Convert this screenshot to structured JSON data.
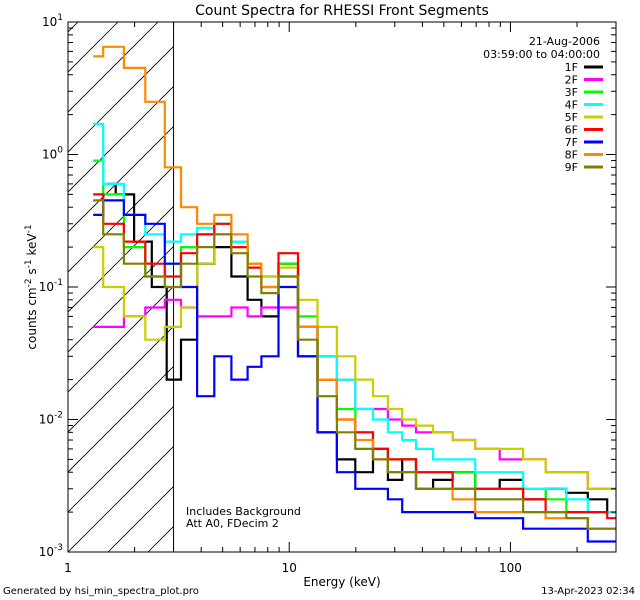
{
  "chart_data": {
    "type": "line",
    "title": "Count Spectra for RHESSI Front Segments",
    "xlabel": "Energy (keV)",
    "ylabel_parts": [
      "counts cm",
      "-2",
      " s",
      "-1",
      " keV",
      "-1"
    ],
    "xscale": "log",
    "yscale": "log",
    "xlim": [
      1,
      300
    ],
    "ylim": [
      0.001,
      10
    ],
    "x_tick_labels": [
      {
        "value": 1,
        "label": "1"
      },
      {
        "value": 10,
        "label": "10"
      },
      {
        "value": 100,
        "label": "100"
      }
    ],
    "y_tick_labels": [
      {
        "value": 10,
        "mant": "10",
        "exp": "1"
      },
      {
        "value": 1,
        "mant": "10",
        "exp": "0"
      },
      {
        "value": 0.1,
        "mant": "10",
        "exp": "-1"
      },
      {
        "value": 0.01,
        "mant": "10",
        "exp": "-2"
      },
      {
        "value": 0.001,
        "mant": "10",
        "exp": "-3"
      }
    ],
    "date": "21-Aug-2006",
    "time_range": "03:59:00 to 04:00:00",
    "shaded_region_kev": [
      1,
      3
    ],
    "annotation_lines": [
      "Includes Background",
      "Att A0, FDecim 2"
    ],
    "series": [
      {
        "name": "1F",
        "color": "#000000",
        "x": [
          1.5,
          1.8,
          2.2,
          2.6,
          3.0,
          3.5,
          4.2,
          5,
          6,
          7,
          8,
          10,
          12,
          15,
          18,
          22,
          26,
          30,
          35,
          40,
          50,
          60,
          80,
          100,
          130,
          160,
          200,
          250,
          300
        ],
        "y": [
          0.6,
          0.5,
          0.22,
          0.1,
          0.02,
          0.04,
          0.15,
          0.2,
          0.12,
          0.08,
          0.06,
          0.15,
          0.03,
          0.008,
          0.005,
          0.004,
          0.006,
          0.0035,
          0.005,
          0.003,
          0.0035,
          0.004,
          0.003,
          0.0035,
          0.0025,
          0.003,
          0.0028,
          0.0025,
          0.002
        ]
      },
      {
        "name": "2F",
        "color": "#ff00ff",
        "x": [
          1.3,
          1.6,
          2.0,
          2.5,
          3.0,
          3.5,
          4.2,
          5,
          6,
          7,
          8,
          10,
          12,
          15,
          18,
          22,
          26,
          30,
          35,
          40,
          50,
          60,
          80,
          100,
          130,
          160,
          200,
          250,
          300
        ],
        "y": [
          0.05,
          0.05,
          0.06,
          0.07,
          0.08,
          0.07,
          0.06,
          0.06,
          0.07,
          0.06,
          0.07,
          0.07,
          0.05,
          0.03,
          0.02,
          0.012,
          0.012,
          0.01,
          0.009,
          0.008,
          0.008,
          0.007,
          0.006,
          0.005,
          0.005,
          0.004,
          0.004,
          0.003,
          0.003
        ]
      },
      {
        "name": "3F",
        "color": "#00ff00",
        "x": [
          1.3,
          1.6,
          2.0,
          2.5,
          3.0,
          3.5,
          4.2,
          5,
          6,
          7,
          8,
          10,
          12,
          15,
          18,
          22,
          26,
          30,
          35,
          40,
          50,
          60,
          80,
          100,
          130,
          160,
          200,
          250,
          300
        ],
        "y": [
          0.9,
          0.5,
          0.2,
          0.12,
          0.15,
          0.2,
          0.25,
          0.3,
          0.22,
          0.15,
          0.12,
          0.15,
          0.06,
          0.02,
          0.012,
          0.008,
          0.006,
          0.005,
          0.005,
          0.004,
          0.004,
          0.004,
          0.003,
          0.003,
          0.003,
          0.0025,
          0.002,
          0.002,
          0.002
        ]
      },
      {
        "name": "4F",
        "color": "#00ffff",
        "x": [
          1.3,
          1.6,
          2.0,
          2.5,
          3.0,
          3.5,
          4.2,
          5,
          6,
          7,
          8,
          10,
          12,
          15,
          18,
          22,
          26,
          30,
          35,
          40,
          50,
          60,
          80,
          100,
          130,
          160,
          200,
          250,
          300
        ],
        "y": [
          1.7,
          0.6,
          0.35,
          0.25,
          0.22,
          0.25,
          0.28,
          0.3,
          0.22,
          0.15,
          0.12,
          0.12,
          0.05,
          0.03,
          0.02,
          0.012,
          0.01,
          0.008,
          0.007,
          0.006,
          0.005,
          0.005,
          0.004,
          0.004,
          0.003,
          0.003,
          0.0025,
          0.002,
          0.002
        ]
      },
      {
        "name": "5F",
        "color": "#cccc00",
        "x": [
          1.3,
          1.6,
          2.0,
          2.5,
          3.0,
          3.5,
          4.2,
          5,
          6,
          7,
          8,
          10,
          12,
          15,
          18,
          22,
          26,
          30,
          35,
          40,
          50,
          60,
          80,
          100,
          130,
          160,
          200,
          250,
          300
        ],
        "y": [
          0.2,
          0.1,
          0.06,
          0.04,
          0.05,
          0.07,
          0.15,
          0.25,
          0.2,
          0.15,
          0.12,
          0.14,
          0.08,
          0.05,
          0.03,
          0.02,
          0.015,
          0.012,
          0.01,
          0.009,
          0.008,
          0.007,
          0.006,
          0.006,
          0.005,
          0.004,
          0.004,
          0.003,
          0.003
        ]
      },
      {
        "name": "6F",
        "color": "#ff0000",
        "x": [
          1.3,
          1.6,
          2.0,
          2.5,
          3.0,
          3.5,
          4.2,
          5,
          6,
          7,
          8,
          10,
          12,
          15,
          18,
          22,
          26,
          30,
          35,
          40,
          50,
          60,
          80,
          100,
          130,
          160,
          200,
          250,
          300
        ],
        "y": [
          0.5,
          0.3,
          0.22,
          0.15,
          0.12,
          0.18,
          0.25,
          0.3,
          0.2,
          0.14,
          0.1,
          0.18,
          0.05,
          0.02,
          0.01,
          0.008,
          0.006,
          0.005,
          0.005,
          0.004,
          0.004,
          0.003,
          0.003,
          0.003,
          0.0025,
          0.002,
          0.002,
          0.002,
          0.0018
        ]
      },
      {
        "name": "7F",
        "color": "#0000ff",
        "x": [
          1.3,
          1.6,
          2.0,
          2.5,
          3.0,
          3.5,
          4.2,
          5,
          6,
          7,
          8,
          10,
          12,
          15,
          18,
          22,
          26,
          30,
          35,
          40,
          50,
          60,
          80,
          100,
          130,
          160,
          200,
          250,
          300
        ],
        "y": [
          0.35,
          0.45,
          0.35,
          0.3,
          0.15,
          0.1,
          0.015,
          0.03,
          0.02,
          0.025,
          0.03,
          0.1,
          0.03,
          0.008,
          0.004,
          0.003,
          0.003,
          0.0025,
          0.002,
          0.002,
          0.002,
          0.002,
          0.0018,
          0.0018,
          0.0015,
          0.0015,
          0.0015,
          0.0012,
          0.0012
        ]
      },
      {
        "name": "8F",
        "color": "#ff8800",
        "x": [
          1.3,
          1.6,
          2.0,
          2.5,
          3.0,
          3.5,
          4.2,
          5,
          6,
          7,
          8,
          10,
          12,
          15,
          18,
          22,
          26,
          30,
          35,
          40,
          50,
          60,
          80,
          100,
          130,
          160,
          200,
          250,
          300
        ],
        "y": [
          5.5,
          6.5,
          4.5,
          2.5,
          0.8,
          0.4,
          0.3,
          0.35,
          0.25,
          0.15,
          0.1,
          0.12,
          0.05,
          0.02,
          0.01,
          0.007,
          0.005,
          0.004,
          0.004,
          0.003,
          0.003,
          0.0025,
          0.002,
          0.002,
          0.002,
          0.0018,
          0.0018,
          0.0015,
          0.0015
        ]
      },
      {
        "name": "9F",
        "color": "#808000",
        "x": [
          1.3,
          1.6,
          2.0,
          2.5,
          3.0,
          3.5,
          4.2,
          5,
          6,
          7,
          8,
          10,
          12,
          15,
          18,
          22,
          26,
          30,
          35,
          40,
          50,
          60,
          80,
          100,
          130,
          160,
          200,
          250,
          300
        ],
        "y": [
          0.45,
          0.25,
          0.15,
          0.12,
          0.1,
          0.15,
          0.2,
          0.25,
          0.18,
          0.12,
          0.09,
          0.12,
          0.04,
          0.015,
          0.008,
          0.006,
          0.005,
          0.004,
          0.004,
          0.003,
          0.003,
          0.003,
          0.0025,
          0.0025,
          0.002,
          0.002,
          0.0018,
          0.0015,
          0.0015
        ]
      }
    ]
  },
  "footer": {
    "left": "Generated by hsi_min_spectra_plot.pro",
    "right": "13-Apr-2023 02:34"
  }
}
